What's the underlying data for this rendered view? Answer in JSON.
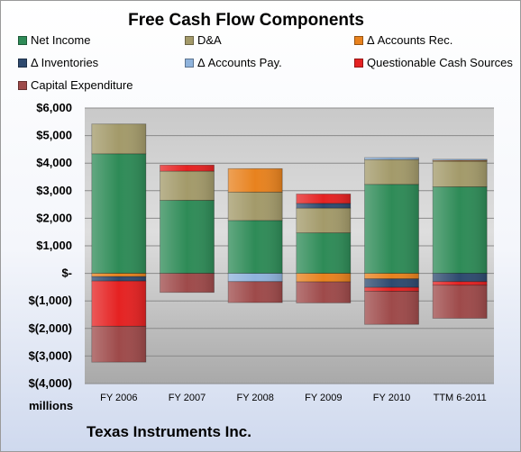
{
  "chart_data": {
    "type": "bar",
    "stacked": true,
    "title": "Free Cash Flow Components",
    "footer": "Texas Instruments Inc.",
    "units": "millions",
    "categories": [
      "FY 2006",
      "FY 2007",
      "FY 2008",
      "FY 2009",
      "FY 2010",
      "TTM 6-2011"
    ],
    "ylim": [
      -4000,
      6000
    ],
    "yticks": [
      6000,
      5000,
      4000,
      3000,
      2000,
      1000,
      0,
      -1000,
      -2000,
      -3000,
      -4000
    ],
    "ytick_labels": [
      "$6,000",
      "$5,000",
      "$4,000",
      "$3,000",
      "$2,000",
      "$1,000",
      "$-",
      "$(1,000)",
      "$(2,000)",
      "$(3,000)",
      "$(4,000)"
    ],
    "grid": true,
    "legend_position": "top",
    "series": [
      {
        "name": "Net Income",
        "color": "#2e8b57",
        "values": [
          4340,
          2650,
          1920,
          1470,
          3230,
          3140
        ]
      },
      {
        "name": "D&A",
        "color": "#a39a6a",
        "values": [
          1080,
          1060,
          1030,
          900,
          900,
          930
        ]
      },
      {
        "name": "Δ Accounts Rec.",
        "color": "#e8821e",
        "values": [
          -120,
          0,
          850,
          -310,
          -200,
          30
        ]
      },
      {
        "name": "Δ Inventories",
        "color": "#2e4a6f",
        "values": [
          -160,
          0,
          0,
          170,
          -310,
          -300
        ]
      },
      {
        "name": "Δ Accounts Pay.",
        "color": "#8fb3dc",
        "values": [
          0,
          0,
          -300,
          0,
          70,
          40
        ]
      },
      {
        "name": "Questionable Cash Sources",
        "color": "#e52222",
        "values": [
          -1640,
          220,
          0,
          340,
          -140,
          -130
        ]
      },
      {
        "name": "Capital Expenditure",
        "color": "#9e4a4a",
        "values": [
          -1300,
          -690,
          -760,
          -760,
          -1200,
          -1200
        ]
      }
    ]
  }
}
